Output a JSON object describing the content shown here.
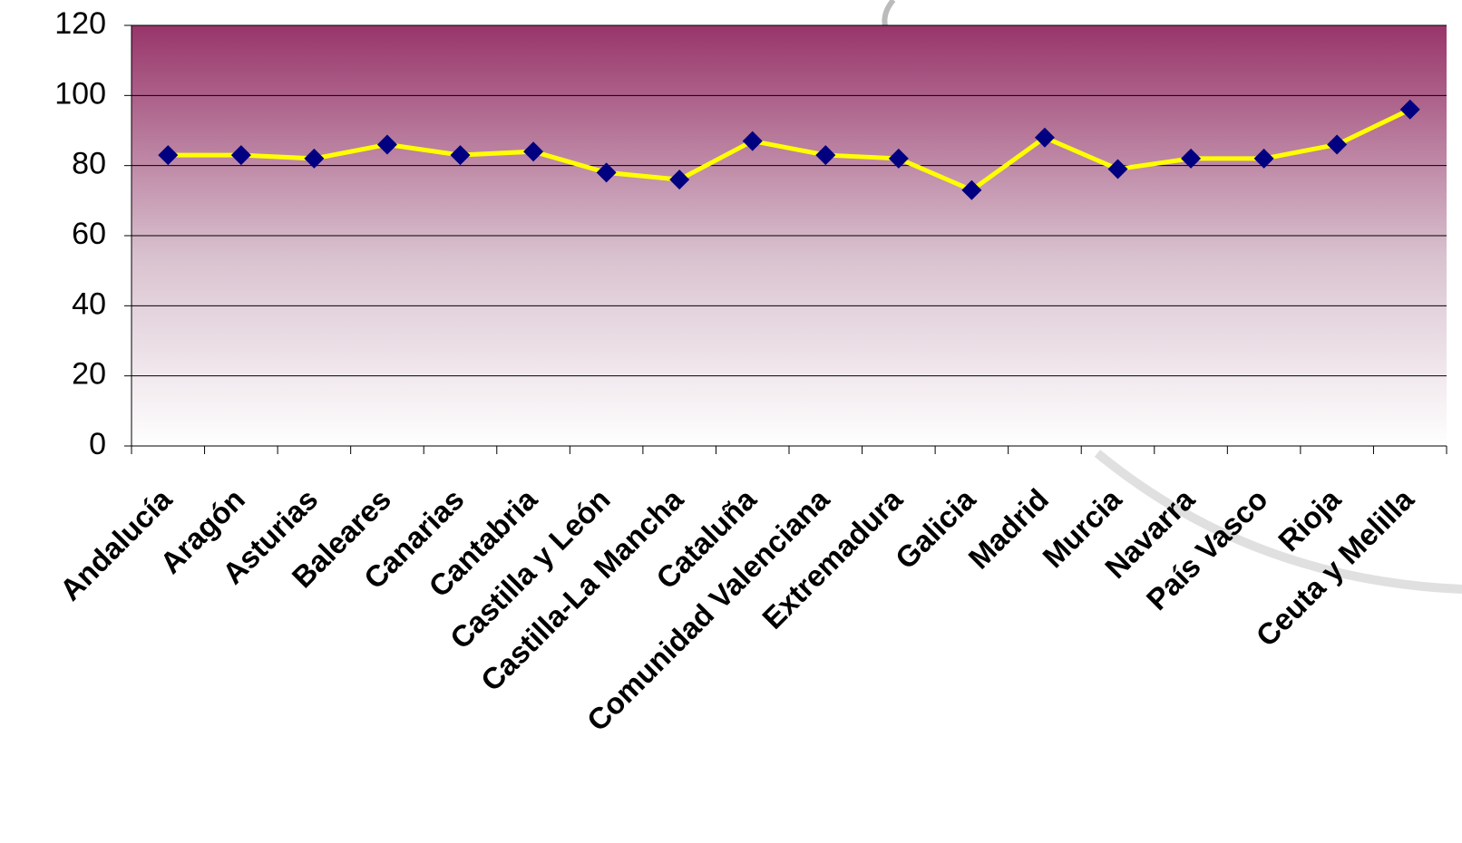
{
  "chart_data": {
    "type": "line",
    "categories": [
      "Andalucía",
      "Aragón",
      "Asturias",
      "Baleares",
      "Canarias",
      "Cantabria",
      "Castilla y León",
      "Castilla-La Mancha",
      "Cataluña",
      "Comunidad Valenciana",
      "Extremadura",
      "Galicia",
      "Madrid",
      "Murcia",
      "Navarra",
      "País Vasco",
      "Rioja",
      "Ceuta y Melilla"
    ],
    "values": [
      83,
      83,
      82,
      86,
      83,
      84,
      78,
      76,
      87,
      83,
      82,
      73,
      88,
      79,
      82,
      82,
      86,
      96
    ],
    "color": "#ffff00",
    "marker_color": "#000080",
    "ylim": [
      0,
      120
    ],
    "yticks": [
      0,
      20,
      40,
      60,
      80,
      100,
      120
    ],
    "grid": true
  }
}
